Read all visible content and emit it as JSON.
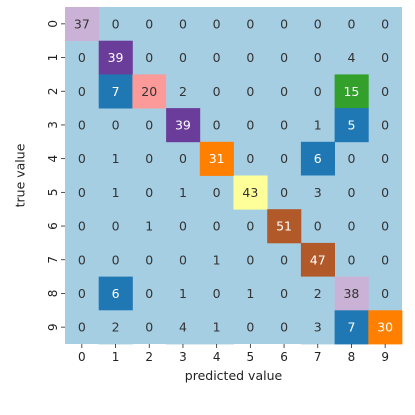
{
  "chart_data": {
    "type": "heatmap",
    "title": "",
    "xlabel": "predicted value",
    "ylabel": "true value",
    "x_categories": [
      "0",
      "1",
      "2",
      "3",
      "4",
      "5",
      "6",
      "7",
      "8",
      "9"
    ],
    "y_categories": [
      "0",
      "1",
      "2",
      "3",
      "4",
      "5",
      "6",
      "7",
      "8",
      "9"
    ],
    "values": [
      [
        37,
        0,
        0,
        0,
        0,
        0,
        0,
        0,
        0,
        0
      ],
      [
        0,
        39,
        0,
        0,
        0,
        0,
        0,
        0,
        4,
        0
      ],
      [
        0,
        7,
        20,
        2,
        0,
        0,
        0,
        0,
        15,
        0
      ],
      [
        0,
        0,
        0,
        39,
        0,
        0,
        0,
        1,
        5,
        0
      ],
      [
        0,
        1,
        0,
        0,
        31,
        0,
        0,
        6,
        0,
        0
      ],
      [
        0,
        1,
        0,
        1,
        0,
        43,
        0,
        3,
        0,
        0
      ],
      [
        0,
        0,
        1,
        0,
        0,
        0,
        51,
        0,
        0,
        0
      ],
      [
        0,
        0,
        0,
        0,
        1,
        0,
        0,
        47,
        0,
        0
      ],
      [
        0,
        6,
        0,
        1,
        0,
        1,
        0,
        2,
        38,
        0
      ],
      [
        0,
        2,
        0,
        4,
        1,
        0,
        0,
        3,
        7,
        30
      ]
    ],
    "colormap": "Paired",
    "colorbar": false,
    "grid": false,
    "annotations": true
  },
  "colors": {
    "zero": "#a6cee3",
    "cell_palette": {
      "1": "#a6cee3",
      "2": "#a6cee3",
      "3": "#a6cee3",
      "4": "#a6cee3",
      "5": "#1f78b4",
      "6": "#1f78b4",
      "7": "#1f78b4",
      "15": "#33a02c",
      "20": "#fb9a99",
      "30": "#ff7f00",
      "31": "#ff7f00",
      "37": "#cab2d6",
      "38": "#cab2d6",
      "39": "#6a3d9a",
      "43": "#ffff99",
      "47": "#b15928",
      "51": "#b15928"
    },
    "light_text": "#ffffff",
    "dark_text": "#333333"
  }
}
